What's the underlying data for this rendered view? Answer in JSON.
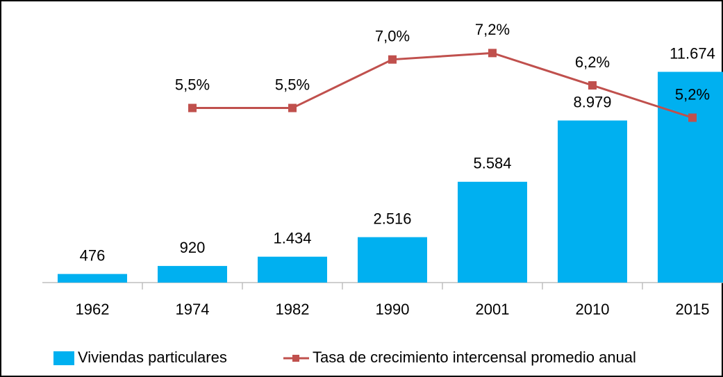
{
  "chart_data": {
    "type": "bar_line",
    "categories": [
      "1962",
      "1974",
      "1982",
      "1990",
      "2001",
      "2010",
      "2015"
    ],
    "series": [
      {
        "name": "Viviendas particulares",
        "type": "bar",
        "color": "#00b0f0",
        "values": [
          476,
          920,
          1434,
          2516,
          5584,
          8979,
          11674
        ],
        "value_labels": [
          "476",
          "920",
          "1.434",
          "2.516",
          "5.584",
          "8.979",
          "11.674"
        ]
      },
      {
        "name": "Tasa de crecimiento intercensal promedio anual",
        "type": "line",
        "axis": "y2",
        "color": "#c0504d",
        "values": [
          null,
          5.5,
          5.5,
          7.0,
          7.2,
          6.2,
          5.2
        ],
        "value_labels": [
          null,
          "5,5%",
          "5,5%",
          "7,0%",
          "7,2%",
          "6,2%",
          "5,2%"
        ]
      }
    ],
    "ylim": [
      0,
      12000
    ],
    "y2lim": [
      0.1,
      6.8
    ],
    "legend": "bottom"
  }
}
